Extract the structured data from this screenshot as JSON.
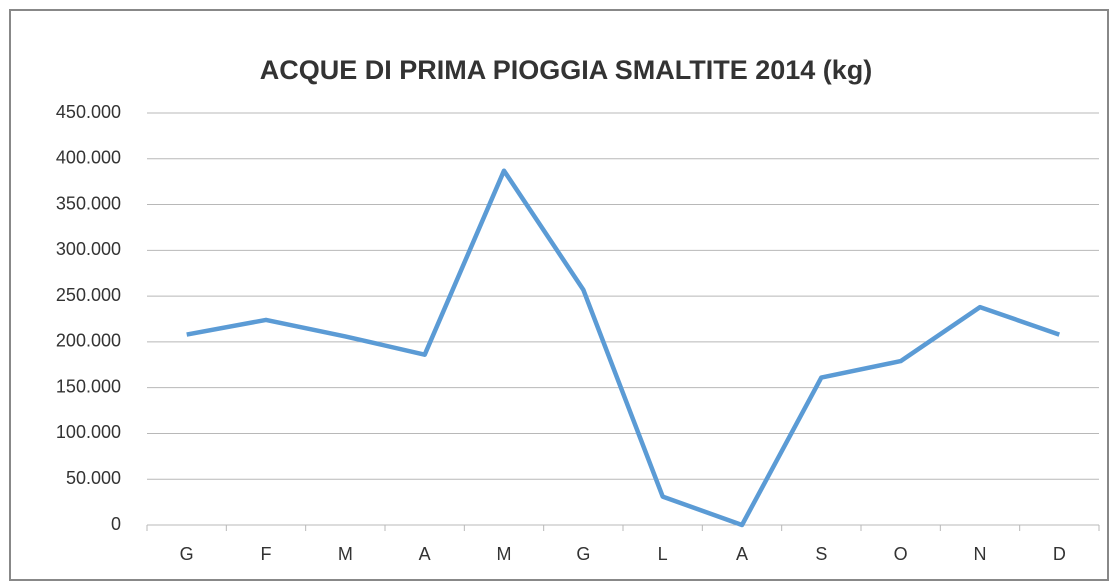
{
  "chart_data": {
    "type": "line",
    "title": "ACQUE DI PRIMA PIOGGIA SMALTITE 2014 (kg)",
    "categories": [
      "G",
      "F",
      "M",
      "A",
      "M",
      "G",
      "L",
      "A",
      "S",
      "O",
      "N",
      "D"
    ],
    "series": [
      {
        "name": "2014",
        "color": "#5b9bd5",
        "values": [
          208000,
          224000,
          206000,
          186000,
          387000,
          257000,
          31000,
          0,
          161000,
          179000,
          238000,
          208000
        ]
      }
    ],
    "ylim": [
      0,
      450000
    ],
    "yticks": [
      0,
      {
        "value": 50000,
        "label": "50.000"
      },
      {
        "value": 100000,
        "label": "100.000"
      },
      {
        "value": 150000,
        "label": "150.000"
      },
      {
        "value": 200000,
        "label": "200.000"
      },
      {
        "value": 250000,
        "label": "250.000"
      },
      {
        "value": 300000,
        "label": "300.000"
      },
      {
        "value": 350000,
        "label": "350.000"
      },
      {
        "value": 400000,
        "label": "400.000"
      },
      {
        "value": 450000,
        "label": "450.000"
      }
    ],
    "grid": true
  }
}
